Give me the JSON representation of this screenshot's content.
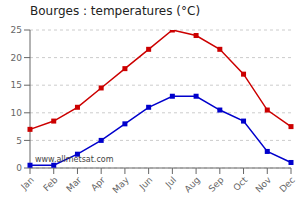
{
  "chart_data": {
    "type": "line",
    "title": "Bourges : temperatures (°C)",
    "categories": [
      "Jan",
      "Feb",
      "Mar",
      "Apr",
      "May",
      "Jun",
      "Jul",
      "Aug",
      "Sep",
      "Oct",
      "Nov",
      "Dec"
    ],
    "series": [
      {
        "color": "#cc0000",
        "values": [
          7,
          8.5,
          11,
          14.5,
          18,
          21.5,
          25,
          24,
          21.5,
          17,
          10.5,
          7.5
        ]
      },
      {
        "color": "#0000cc",
        "values": [
          0.5,
          0.5,
          2.5,
          5,
          8,
          11,
          13,
          13,
          10.5,
          8.5,
          3,
          1
        ]
      }
    ],
    "ylim": [
      0,
      25
    ],
    "yticks": [
      0,
      5,
      10,
      15,
      20,
      25
    ],
    "grid": true,
    "marker": "square",
    "annotations": [
      "www.allmetsat.com"
    ]
  }
}
